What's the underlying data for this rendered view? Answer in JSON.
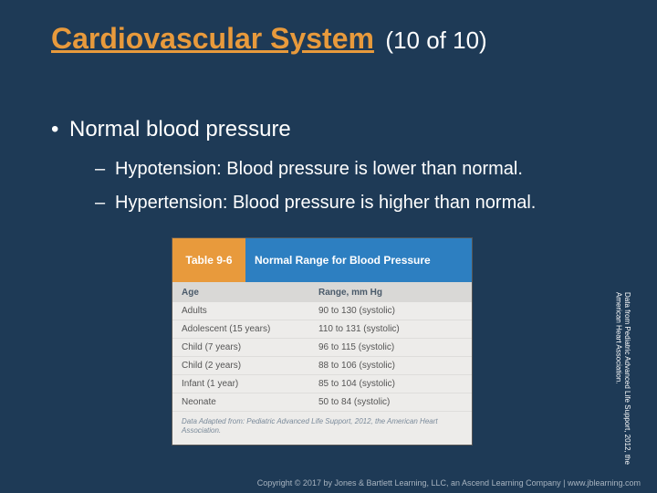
{
  "title": {
    "main": "Cardiovascular System",
    "count": "(10 of 10)",
    "main_color": "#e89a3c",
    "count_color": "#ffffff"
  },
  "bullets": {
    "l1": "Normal blood pressure",
    "l2a": "Hypotension: Blood pressure is lower than normal.",
    "l2b": "Hypertension: Blood pressure is higher than normal."
  },
  "table": {
    "number_label": "Table 9-6",
    "title": "Normal Range for Blood Pressure",
    "header_num_bg": "#e89a3c",
    "header_title_bg": "#2d7fc1",
    "columns": [
      "Age",
      "Range, mm Hg"
    ],
    "rows": [
      [
        "Adults",
        "90 to 130 (systolic)"
      ],
      [
        "Adolescent (15 years)",
        "110 to 131 (systolic)"
      ],
      [
        "Child (7 years)",
        "96 to 115 (systolic)"
      ],
      [
        "Child (2 years)",
        "88 to 106 (systolic)"
      ],
      [
        "Infant (1 year)",
        "85 to 104 (systolic)"
      ],
      [
        "Neonate",
        "50 to 84 (systolic)"
      ]
    ],
    "footnote": "Data Adapted from: Pediatric Advanced Life Support, 2012, the American Heart Association."
  },
  "side_credit": "Data from Pediatric Advanced Life Support, 2012, the American Heart Association.",
  "footer": "Copyright © 2017 by Jones & Bartlett Learning, LLC, an Ascend Learning Company | www.jblearning.com",
  "colors": {
    "slide_bg": "#1e3a56",
    "text": "#ffffff"
  }
}
